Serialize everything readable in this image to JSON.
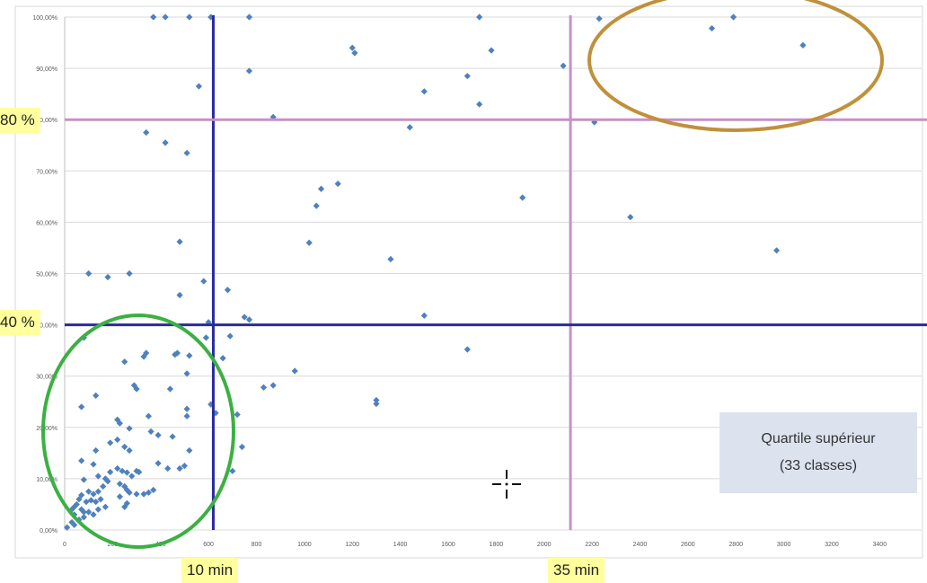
{
  "chart_data": {
    "type": "scatter",
    "title": "",
    "xlabel": "",
    "ylabel": "",
    "xlim": [
      0,
      3500
    ],
    "ylim": [
      0,
      1
    ],
    "x_ticks": [
      0,
      200,
      400,
      600,
      800,
      1000,
      1200,
      1400,
      1600,
      1800,
      2000,
      2200,
      2400,
      2600,
      2800,
      3000,
      3200,
      3400
    ],
    "x_tick_labels": [
      "0",
      "200",
      "400",
      "600",
      "800",
      "1000",
      "1200",
      "1400",
      "1600",
      "1800",
      "2000",
      "2200",
      "2400",
      "2600",
      "2800",
      "3000",
      "3200",
      "3400"
    ],
    "y_ticks": [
      0,
      0.1,
      0.2,
      0.3,
      0.4,
      0.5,
      0.6,
      0.7,
      0.8,
      0.9,
      1.0
    ],
    "y_tick_labels": [
      "0,00%",
      "10,00%",
      "20,00%",
      "30,00%",
      "40,00%",
      "50,00%",
      "60,00%",
      "70,00%",
      "80,00%",
      "90,00%",
      "100,00%"
    ],
    "grid": "horizontal",
    "points_color": "#4f81bd",
    "points": [
      [
        370,
        1.0
      ],
      [
        420,
        1.0
      ],
      [
        520,
        1.0
      ],
      [
        610,
        1.0
      ],
      [
        770,
        1.0
      ],
      [
        1730,
        1.0
      ],
      [
        2230,
        0.997
      ],
      [
        2700,
        0.978
      ],
      [
        2790,
        1.0
      ],
      [
        3080,
        0.945
      ],
      [
        1200,
        0.94
      ],
      [
        1210,
        0.93
      ],
      [
        1780,
        0.935
      ],
      [
        2080,
        0.905
      ],
      [
        770,
        0.895
      ],
      [
        1680,
        0.885
      ],
      [
        1500,
        0.855
      ],
      [
        560,
        0.865
      ],
      [
        1730,
        0.83
      ],
      [
        870,
        0.805
      ],
      [
        2210,
        0.795
      ],
      [
        1440,
        0.785
      ],
      [
        340,
        0.775
      ],
      [
        420,
        0.755
      ],
      [
        510,
        0.735
      ],
      [
        1910,
        0.648
      ],
      [
        1070,
        0.665
      ],
      [
        1140,
        0.675
      ],
      [
        1050,
        0.632
      ],
      [
        2360,
        0.61
      ],
      [
        1020,
        0.56
      ],
      [
        480,
        0.562
      ],
      [
        2970,
        0.545
      ],
      [
        1360,
        0.528
      ],
      [
        100,
        0.5
      ],
      [
        180,
        0.493
      ],
      [
        270,
        0.5
      ],
      [
        580,
        0.485
      ],
      [
        680,
        0.468
      ],
      [
        480,
        0.458
      ],
      [
        1500,
        0.418
      ],
      [
        750,
        0.415
      ],
      [
        770,
        0.41
      ],
      [
        600,
        0.405
      ],
      [
        80,
        0.375
      ],
      [
        590,
        0.375
      ],
      [
        690,
        0.378
      ],
      [
        1680,
        0.352
      ],
      [
        340,
        0.345
      ],
      [
        330,
        0.338
      ],
      [
        520,
        0.34
      ],
      [
        660,
        0.335
      ],
      [
        250,
        0.328
      ],
      [
        470,
        0.345
      ],
      [
        460,
        0.342
      ],
      [
        960,
        0.31
      ],
      [
        510,
        0.305
      ],
      [
        870,
        0.282
      ],
      [
        830,
        0.278
      ],
      [
        1300,
        0.253
      ],
      [
        1300,
        0.246
      ],
      [
        130,
        0.262
      ],
      [
        290,
        0.282
      ],
      [
        300,
        0.275
      ],
      [
        440,
        0.275
      ],
      [
        610,
        0.245
      ],
      [
        630,
        0.228
      ],
      [
        720,
        0.225
      ],
      [
        70,
        0.24
      ],
      [
        510,
        0.236
      ],
      [
        510,
        0.222
      ],
      [
        220,
        0.215
      ],
      [
        230,
        0.208
      ],
      [
        350,
        0.222
      ],
      [
        270,
        0.198
      ],
      [
        360,
        0.192
      ],
      [
        390,
        0.185
      ],
      [
        450,
        0.182
      ],
      [
        520,
        0.155
      ],
      [
        740,
        0.162
      ],
      [
        190,
        0.17
      ],
      [
        220,
        0.176
      ],
      [
        250,
        0.162
      ],
      [
        270,
        0.155
      ],
      [
        130,
        0.155
      ],
      [
        70,
        0.135
      ],
      [
        120,
        0.128
      ],
      [
        390,
        0.13
      ],
      [
        430,
        0.12
      ],
      [
        480,
        0.12
      ],
      [
        500,
        0.125
      ],
      [
        700,
        0.115
      ],
      [
        190,
        0.113
      ],
      [
        220,
        0.12
      ],
      [
        240,
        0.115
      ],
      [
        260,
        0.112
      ],
      [
        280,
        0.105
      ],
      [
        300,
        0.115
      ],
      [
        310,
        0.113
      ],
      [
        140,
        0.105
      ],
      [
        170,
        0.1
      ],
      [
        80,
        0.098
      ],
      [
        180,
        0.095
      ],
      [
        230,
        0.09
      ],
      [
        250,
        0.085
      ],
      [
        260,
        0.078
      ],
      [
        270,
        0.073
      ],
      [
        300,
        0.07
      ],
      [
        330,
        0.07
      ],
      [
        350,
        0.073
      ],
      [
        370,
        0.078
      ],
      [
        160,
        0.085
      ],
      [
        140,
        0.075
      ],
      [
        120,
        0.07
      ],
      [
        100,
        0.075
      ],
      [
        70,
        0.068
      ],
      [
        60,
        0.06
      ],
      [
        90,
        0.055
      ],
      [
        110,
        0.058
      ],
      [
        130,
        0.055
      ],
      [
        150,
        0.06
      ],
      [
        230,
        0.065
      ],
      [
        260,
        0.052
      ],
      [
        250,
        0.045
      ],
      [
        50,
        0.05
      ],
      [
        40,
        0.045
      ],
      [
        30,
        0.04
      ],
      [
        70,
        0.04
      ],
      [
        80,
        0.035
      ],
      [
        100,
        0.035
      ],
      [
        120,
        0.03
      ],
      [
        140,
        0.04
      ],
      [
        170,
        0.045
      ],
      [
        40,
        0.03
      ],
      [
        60,
        0.02
      ],
      [
        80,
        0.025
      ],
      [
        30,
        0.015
      ],
      [
        40,
        0.01
      ],
      [
        10,
        0.005
      ]
    ],
    "reference_lines": [
      {
        "orientation": "vertical",
        "value": 620,
        "color": "#2a2aa0"
      },
      {
        "orientation": "vertical",
        "value": 2110,
        "color": "#c890c8"
      },
      {
        "orientation": "horizontal",
        "value": 0.4,
        "color": "#2a2aa0"
      },
      {
        "orientation": "horizontal",
        "value": 0.8,
        "color": "#c890c8"
      }
    ],
    "annotations": {
      "label_80": "80 %",
      "label_40": "40 %",
      "label_10min": "10 min",
      "label_35min": "35 min",
      "box_line1": "Quartile supérieur",
      "box_line2": "(33 classes)"
    },
    "highlight_circles": [
      {
        "color": "#3cb043"
      },
      {
        "color": "#c0903a"
      }
    ]
  }
}
